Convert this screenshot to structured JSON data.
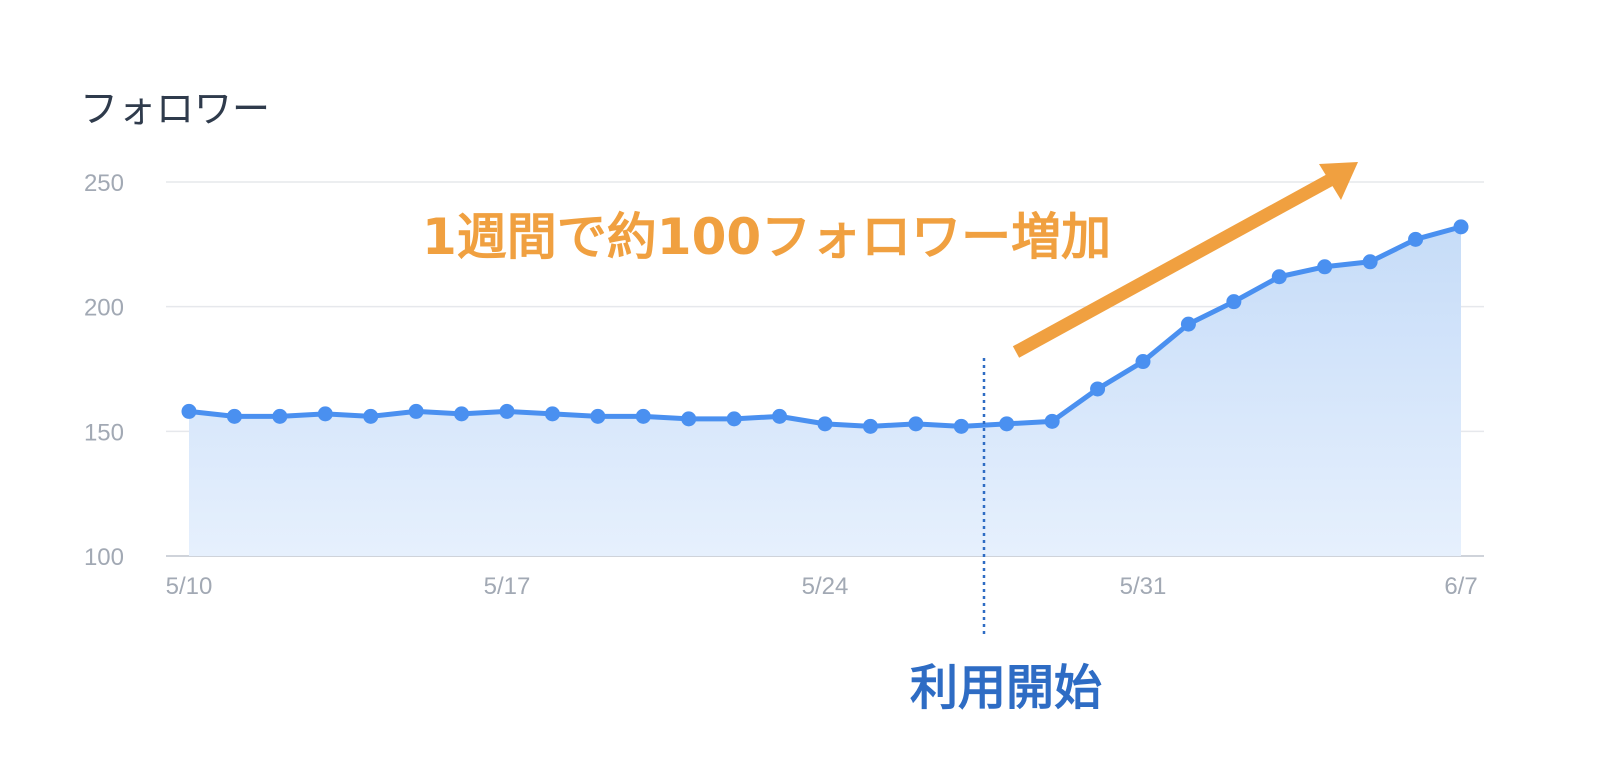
{
  "chart_data": {
    "type": "area",
    "title": "フォロワー",
    "xlabel": "",
    "ylabel": "",
    "ylim": [
      100,
      250
    ],
    "y_ticks": [
      "250",
      "200",
      "150",
      "100"
    ],
    "x_ticks": [
      "5/10",
      "5/17",
      "5/24",
      "5/31",
      "6/7"
    ],
    "grid": true,
    "x": [
      "5/10",
      "5/11",
      "5/12",
      "5/13",
      "5/14",
      "5/15",
      "5/16",
      "5/17",
      "5/18",
      "5/19",
      "5/20",
      "5/21",
      "5/22",
      "5/23",
      "5/24",
      "5/25",
      "5/26",
      "5/27",
      "5/28",
      "5/29",
      "5/30",
      "5/31",
      "6/1",
      "6/2",
      "6/3",
      "6/4",
      "6/5",
      "6/6",
      "6/7"
    ],
    "series": [
      {
        "values": [
          158,
          156,
          156,
          157,
          156,
          158,
          157,
          158,
          157,
          156,
          156,
          155,
          155,
          156,
          153,
          152,
          153,
          152,
          153,
          154,
          167,
          178,
          193,
          202,
          212,
          216,
          218,
          227,
          232
        ]
      }
    ],
    "annotations": {
      "growth_label": "1週間で約100フォロワー増加",
      "start_label": "利用開始",
      "start_x": "5/28"
    },
    "colors": {
      "line": "#4a90f0",
      "area_top": "#c6dcf8",
      "area_bottom": "#e6f0fd",
      "grid": "#e6e8ec",
      "arrow": "#f0a040",
      "annot_blue": "#2e6cc4"
    }
  }
}
